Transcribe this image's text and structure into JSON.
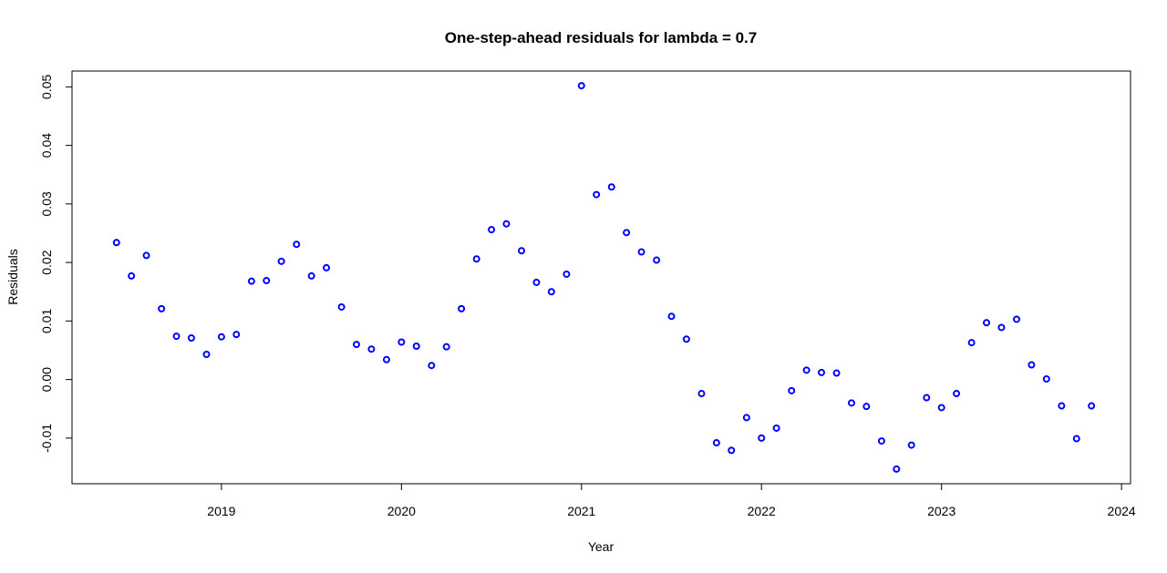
{
  "chart_data": {
    "type": "scatter",
    "title": "One-step-ahead residuals for lambda = 0.7",
    "xlabel": "Year",
    "ylabel": "Residuals",
    "xlim": [
      2018.17,
      2024.05
    ],
    "ylim": [
      -0.0178,
      0.0527
    ],
    "x_ticks": [
      2019,
      2020,
      2021,
      2022,
      2023,
      2024
    ],
    "y_ticks": [
      -0.01,
      0.0,
      0.01,
      0.02,
      0.03,
      0.04,
      0.05
    ],
    "y_tick_labels": [
      "-0.01",
      "0.00",
      "0.01",
      "0.02",
      "0.03",
      "0.04",
      "0.05"
    ],
    "grid": false,
    "point_color": "#0000ff",
    "series": [
      {
        "x": [
          2018.417,
          2018.5,
          2018.583,
          2018.667,
          2018.75,
          2018.833,
          2018.917,
          2019.0,
          2019.083,
          2019.167,
          2019.25,
          2019.333,
          2019.417,
          2019.5,
          2019.583,
          2019.667,
          2019.75,
          2019.833,
          2019.917,
          2020.0,
          2020.083,
          2020.167,
          2020.25,
          2020.333,
          2020.417,
          2020.5,
          2020.583,
          2020.667,
          2020.75,
          2020.833,
          2020.917,
          2021.0,
          2021.083,
          2021.167,
          2021.25,
          2021.333,
          2021.417,
          2021.5,
          2021.583,
          2021.667,
          2021.75,
          2021.833,
          2021.917,
          2022.0,
          2022.083,
          2022.167,
          2022.25,
          2022.333,
          2022.417,
          2022.5,
          2022.583,
          2022.667,
          2022.75,
          2022.833,
          2022.917,
          2023.0,
          2023.083,
          2023.167,
          2023.25,
          2023.333,
          2023.417,
          2023.5,
          2023.583,
          2023.667,
          2023.75,
          2023.833
        ],
        "y": [
          0.0234,
          0.0177,
          0.0212,
          0.0121,
          0.0074,
          0.0071,
          0.0043,
          0.0073,
          0.0077,
          0.0168,
          0.0169,
          0.0202,
          0.0231,
          0.0177,
          0.0191,
          0.0124,
          0.006,
          0.0052,
          0.0034,
          0.0064,
          0.0057,
          0.0024,
          0.0056,
          0.0121,
          0.0206,
          0.0256,
          0.0266,
          0.022,
          0.0166,
          0.015,
          0.018,
          0.0502,
          0.0316,
          0.0329,
          0.0251,
          0.0218,
          0.0204,
          0.0108,
          0.0069,
          -0.0024,
          -0.0108,
          -0.0121,
          -0.0065,
          -0.01,
          -0.0083,
          -0.0019,
          0.0016,
          0.0012,
          0.0011,
          -0.004,
          -0.0046,
          -0.0105,
          -0.0153,
          -0.0112,
          -0.0031,
          -0.0048,
          -0.0024,
          0.0063,
          0.0097,
          0.0089,
          0.0103,
          0.0025,
          0.0001,
          -0.0045,
          -0.0101,
          -0.0045
        ]
      }
    ]
  }
}
